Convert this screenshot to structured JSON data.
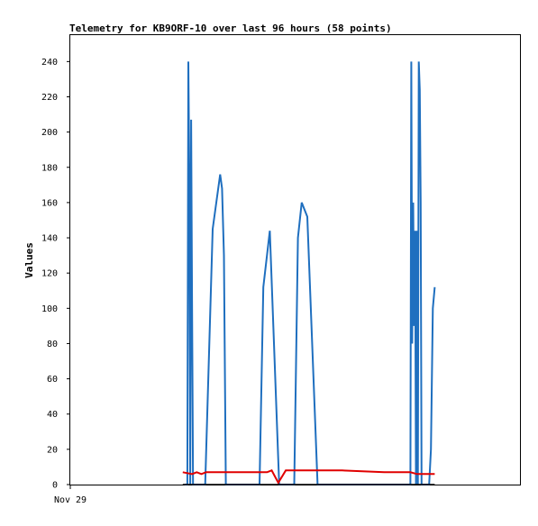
{
  "chart_data": {
    "type": "line",
    "title": "Telemetry for KB9ORF-10 over last 96 hours (58 points)",
    "xlabel": "",
    "ylabel": "Values",
    "x_tick_labels": [
      "Nov 29"
    ],
    "ylim": [
      0,
      255
    ],
    "y_ticks": [
      0,
      20,
      40,
      60,
      80,
      100,
      120,
      140,
      160,
      180,
      200,
      220,
      240
    ],
    "xlim": [
      0,
      96
    ],
    "grid": false,
    "legend": "none",
    "series": [
      {
        "color": "#1f6fbf",
        "x": [
          24.4,
          25.0,
          25.2,
          25.4,
          25.6,
          25.8,
          26.0,
          26.2,
          26.6,
          27.4,
          28.8,
          30.4,
          32.0,
          32.4,
          32.8,
          33.2,
          34.6,
          36.4,
          38.0,
          40.4,
          41.2,
          42.6,
          44.6,
          46.2,
          47.8,
          48.6,
          49.4,
          50.6,
          52.8,
          55.4,
          72.6,
          72.8,
          73.0,
          73.2,
          73.4,
          73.6,
          73.8,
          74.0,
          74.2,
          74.4,
          74.6,
          74.8,
          75.0,
          75.2,
          76.0,
          76.6,
          77.0,
          77.4,
          77.8
        ],
        "values": [
          0,
          0,
          240,
          180,
          0,
          207,
          104,
          0,
          0,
          0,
          0,
          145,
          176,
          168,
          130,
          0,
          0,
          0,
          0,
          0,
          112,
          144,
          0,
          0,
          0,
          140,
          160,
          152,
          0,
          0,
          0,
          240,
          80,
          160,
          90,
          144,
          0,
          144,
          0,
          240,
          224,
          160,
          0,
          0,
          0,
          0,
          20,
          100,
          112
        ]
      },
      {
        "color": "#e00000",
        "x": [
          24.0,
          26.0,
          27.0,
          28.0,
          29.0,
          30.0,
          38.0,
          42.0,
          43.0,
          44.4,
          46.0,
          55.0,
          58.0,
          67.0,
          72.6,
          74.0,
          77.8
        ],
        "values": [
          7,
          6,
          7,
          6,
          7,
          7,
          7,
          7,
          8,
          1,
          8,
          8,
          8,
          7,
          7,
          6,
          6
        ]
      },
      {
        "color": "#000000",
        "x": [
          24.0,
          77.8
        ],
        "values": [
          0,
          0
        ]
      }
    ]
  }
}
